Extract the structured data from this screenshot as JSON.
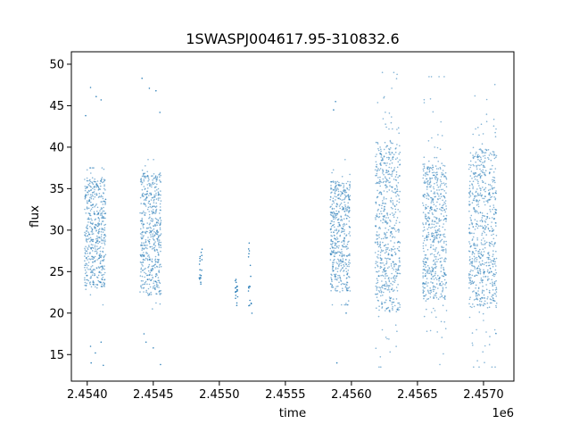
{
  "chart_data": {
    "type": "scatter",
    "title": "1SWASPJ004617.95-310832.6",
    "xlabel": "time",
    "ylabel": "flux",
    "x_offset_label": "1e6",
    "xlim": [
      2453780,
      2457130
    ],
    "ylim": [
      11.8,
      51.5
    ],
    "x_ticks": [
      2453900,
      2454400,
      2454900,
      2455400,
      2455900,
      2456400,
      2456900
    ],
    "x_tick_labels": [
      "2.4540",
      "2.4545",
      "2.4550",
      "2.4555",
      "2.4560",
      "2.4565",
      "2.4570"
    ],
    "y_ticks": [
      15,
      20,
      25,
      30,
      35,
      40,
      45,
      50
    ],
    "y_tick_labels": [
      "15",
      "20",
      "25",
      "30",
      "35",
      "40",
      "45",
      "50"
    ],
    "grid": false,
    "point_color": "#1f77b4",
    "series": [
      {
        "values": [
          {
            "x": [
              2453880,
              2454040
            ],
            "core": [
              23,
              36.5
            ],
            "spread": [
              21,
              37.5
            ],
            "outliers": [
              [
                2453888,
                43.8
              ],
              [
                2453925,
                47.2
              ],
              [
                2453968,
                46.1
              ],
              [
                2454005,
                45.7
              ],
              [
                2453925,
                16.0
              ],
              [
                2453962,
                15.2
              ],
              [
                2453930,
                14.0
              ],
              [
                2454005,
                16.5
              ],
              [
                2454022,
                13.7
              ]
            ]
          },
          {
            "x": [
              2454300,
              2454460
            ],
            "core": [
              22,
              37
            ],
            "spread": [
              20.5,
              38.5
            ],
            "outliers": [
              [
                2454315,
                48.3
              ],
              [
                2454370,
                47.1
              ],
              [
                2454420,
                46.8
              ],
              [
                2454450,
                44.2
              ],
              [
                2454330,
                17.5
              ],
              [
                2454345,
                16.5
              ],
              [
                2454400,
                15.8
              ],
              [
                2454455,
                13.8
              ]
            ]
          },
          {
            "x": [
              2454745,
              2454770
            ],
            "core": [
              23.5,
              28
            ],
            "spread": [
              23.5,
              28
            ],
            "outliers": []
          },
          {
            "x": [
              2455020,
              2455040
            ],
            "core": [
              20.5,
              24.5
            ],
            "spread": [
              20.5,
              24.5
            ],
            "outliers": []
          },
          {
            "x": [
              2455120,
              2455150
            ],
            "core": [
              19,
              29
            ],
            "spread": [
              19,
              29
            ],
            "outliers": []
          },
          {
            "x": [
              2455740,
              2455890
            ],
            "core": [
              22.5,
              36
            ],
            "spread": [
              21,
              38.5
            ],
            "outliers": [
              [
                2455765,
                44.5
              ],
              [
                2455780,
                45.5
              ],
              [
                2455790,
                14.0
              ],
              [
                2455860,
                20.0
              ]
            ]
          },
          {
            "x": [
              2456080,
              2456270
            ],
            "core": [
              20,
              41
            ],
            "spread": [
              13.5,
              49
            ],
            "outliers": []
          },
          {
            "x": [
              2456440,
              2456620
            ],
            "core": [
              21.5,
              38
            ],
            "spread": [
              13.8,
              48.5
            ],
            "outliers": []
          },
          {
            "x": [
              2456790,
              2457000
            ],
            "core": [
              20.5,
              40
            ],
            "spread": [
              13.5,
              49.5
            ],
            "outliers": []
          }
        ]
      }
    ]
  }
}
